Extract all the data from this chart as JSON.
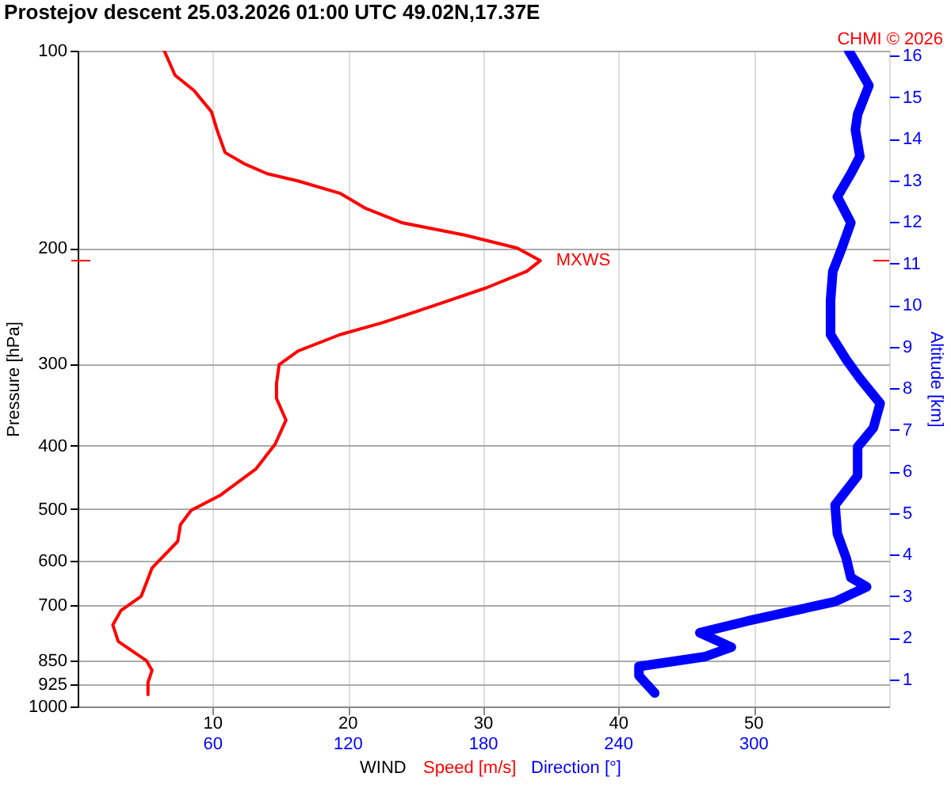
{
  "chart_data": {
    "type": "line",
    "title": "Prostejov  descent  25.03.2026 01:00 UTC  49.02N,17.37E",
    "xlabel": "WIND",
    "ylabel": "Pressure [hPa]",
    "y2label": "Altitude [km]",
    "annotations": [
      {
        "text": "MXWS",
        "x": 34.2,
        "y": 209
      },
      "CHMI © 2026"
    ],
    "series": [
      {
        "name": "Speed [m/s]",
        "color": "#ff0000",
        "x": [
          6.4,
          7.2,
          8.6,
          9.9,
          10.3,
          10.9,
          12.4,
          14.0,
          16.3,
          19.4,
          21.3,
          24.0,
          28.6,
          32.5,
          34.2,
          33.2,
          30.2,
          26.3,
          22.5,
          19.4,
          16.3,
          14.9,
          14.7,
          14.7,
          15.4,
          14.6,
          13.2,
          10.5,
          8.4,
          7.6,
          7.4,
          5.5,
          4.7,
          3.2,
          2.6,
          3.0,
          5.1,
          5.5,
          5.2,
          5.2
        ],
        "values": [
          100,
          109,
          115,
          124,
          132,
          143,
          149,
          154,
          158,
          165,
          174,
          183,
          191,
          200,
          209,
          217,
          230,
          245,
          260,
          271,
          287,
          301,
          322,
          339,
          366,
          398,
          434,
          477,
          502,
          528,
          560,
          615,
          679,
          714,
          751,
          796,
          852,
          881,
          919,
          959
        ]
      },
      {
        "name": "Direction [°]",
        "color": "#0000ff",
        "axis": "x2",
        "x": [
          342,
          345,
          351,
          346,
          345,
          347,
          343,
          337,
          343,
          339,
          335,
          334,
          334,
          341,
          347,
          356,
          353,
          346,
          346,
          336,
          337,
          341,
          343,
          350,
          336,
          297,
          276,
          290,
          278,
          249,
          249,
          256
        ],
        "values": [
          100,
          104,
          113,
          125,
          132,
          145,
          154,
          167,
          183,
          200,
          217,
          240,
          271,
          296,
          316,
          345,
          376,
          402,
          445,
          493,
          545,
          595,
          636,
          657,
          692,
          741,
          772,
          812,
          840,
          869,
          898,
          954
        ]
      }
    ],
    "xlim": [
      0,
      60
    ],
    "x2lim": [
      0,
      360
    ],
    "xticks": [
      10,
      20,
      30,
      40,
      50
    ],
    "x2ticks": [
      60,
      120,
      180,
      240,
      300
    ],
    "ylim": [
      1000,
      100
    ],
    "yticks": [
      100,
      200,
      300,
      400,
      500,
      600,
      700,
      850,
      925,
      1000
    ],
    "log": "y",
    "y2lim": [
      0.35,
      16.12
    ],
    "y2ticks": [
      1,
      2,
      3,
      4,
      5,
      6,
      7,
      8,
      9,
      10,
      11,
      12,
      13,
      14,
      15,
      16
    ],
    "grid": true,
    "legend": "bottom",
    "marker": "none",
    "line_style": "solid"
  }
}
